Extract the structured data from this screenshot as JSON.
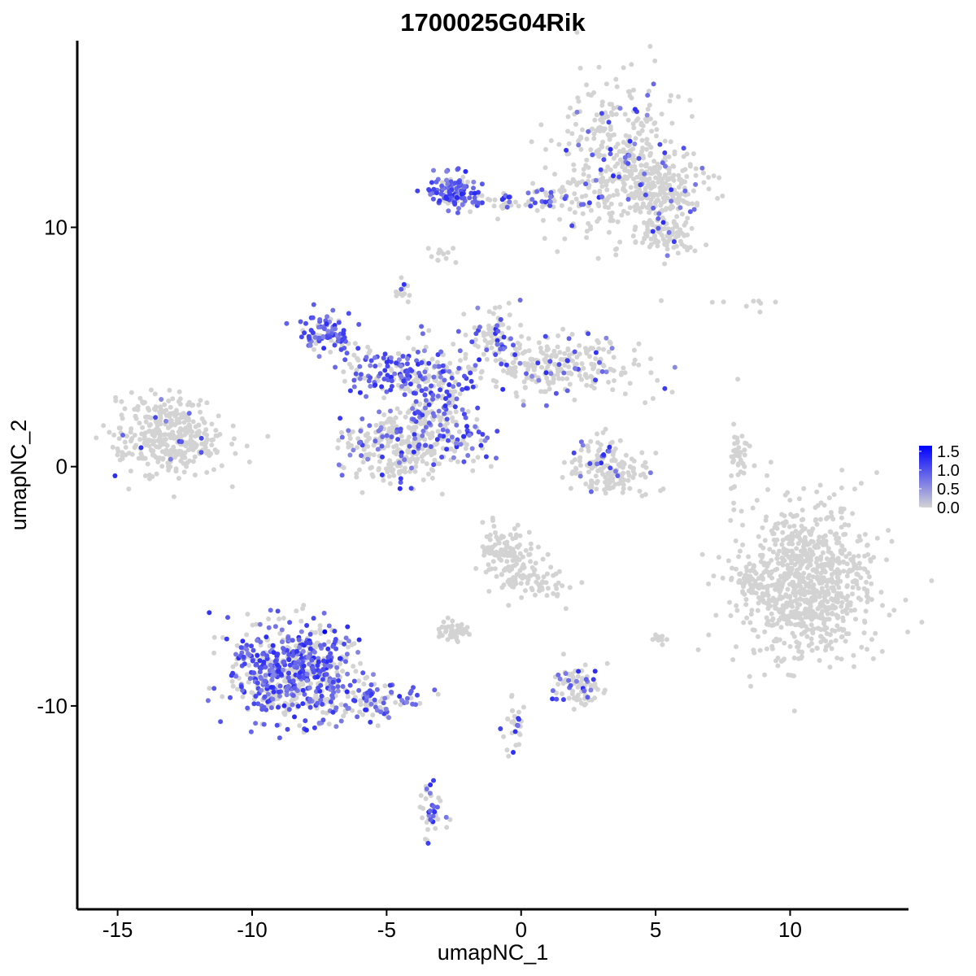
{
  "chart_data": {
    "type": "scatter",
    "title": "1700025G04Rik",
    "xlabel": "umapNC_1",
    "ylabel": "umapNC_2",
    "xlim": [
      -16.5,
      14.4
    ],
    "ylim": [
      -18.5,
      17.8
    ],
    "x_ticks": [
      -15,
      -10,
      -5,
      0,
      5,
      10
    ],
    "x_tick_labels": [
      "-15",
      "-10",
      "-5",
      "0",
      "5",
      "10"
    ],
    "y_ticks": [
      -10,
      0,
      10
    ],
    "y_tick_labels": [
      "-10",
      "0",
      "10"
    ],
    "grid": false,
    "legend": {
      "placement": "right",
      "type": "colorbar",
      "min": 0.0,
      "max": 1.65,
      "ticks": [
        0.0,
        0.5,
        1.0,
        1.5
      ],
      "tick_labels": [
        "0.0",
        "0.5",
        "1.0",
        "1.5"
      ],
      "color_low": "#d3d3d3",
      "color_high": "#0000ff"
    },
    "point_color_base": "#d3d3d3",
    "point_color_expr": "#0000ff",
    "clusters": [
      {
        "id": "top-right",
        "cx": 3.6,
        "cy": 12.8,
        "sx": 1.2,
        "sy": 1.6,
        "n": 380,
        "frac": 0.1
      },
      {
        "id": "top-right-tail",
        "cx": 5.2,
        "cy": 11.5,
        "sx": 0.8,
        "sy": 0.7,
        "n": 200,
        "frac": 0.08
      },
      {
        "id": "top-right-low",
        "cx": 5.5,
        "cy": 9.8,
        "sx": 0.5,
        "sy": 0.4,
        "n": 80,
        "frac": 0.05
      },
      {
        "id": "top-arm",
        "cx": -2.5,
        "cy": 11.5,
        "sx": 0.5,
        "sy": 0.35,
        "n": 120,
        "frac": 0.75
      },
      {
        "id": "top-bridge",
        "cx": 0.5,
        "cy": 11.1,
        "sx": 1.3,
        "sy": 0.25,
        "n": 90,
        "frac": 0.35
      },
      {
        "id": "left-blob",
        "cx": -13.0,
        "cy": 1.2,
        "sx": 1.0,
        "sy": 0.8,
        "n": 360,
        "frac": 0.02
      },
      {
        "id": "center-upper-left",
        "cx": -7.2,
        "cy": 5.5,
        "sx": 0.5,
        "sy": 0.4,
        "n": 90,
        "frac": 0.75
      },
      {
        "id": "center-arm",
        "cx": -4.6,
        "cy": 4.0,
        "sx": 1.0,
        "sy": 0.45,
        "n": 140,
        "frac": 0.6
      },
      {
        "id": "center-core",
        "cx": -3.2,
        "cy": 2.7,
        "sx": 0.7,
        "sy": 1.1,
        "n": 180,
        "frac": 0.45
      },
      {
        "id": "center-right-wing",
        "cx": 1.2,
        "cy": 4.2,
        "sx": 1.6,
        "sy": 0.6,
        "n": 260,
        "frac": 0.15
      },
      {
        "id": "center-upper-right",
        "cx": -1.0,
        "cy": 5.5,
        "sx": 0.5,
        "sy": 0.6,
        "n": 80,
        "frac": 0.2
      },
      {
        "id": "center-lower",
        "cx": -4.6,
        "cy": 0.9,
        "sx": 1.0,
        "sy": 0.8,
        "n": 280,
        "frac": 0.2
      },
      {
        "id": "center-diag",
        "cx": -1.9,
        "cy": 1.3,
        "sx": 0.5,
        "sy": 0.5,
        "n": 40,
        "frac": 0.6
      },
      {
        "id": "mid-arc",
        "cx": 3.2,
        "cy": -0.3,
        "sx": 0.9,
        "sy": 0.4,
        "n": 130,
        "frac": 0.05
      },
      {
        "id": "mid-arc-top",
        "cx": 2.9,
        "cy": 0.6,
        "sx": 0.4,
        "sy": 0.4,
        "n": 40,
        "frac": 0.15
      },
      {
        "id": "right-sliver",
        "cx": 8.1,
        "cy": 0.2,
        "sx": 0.2,
        "sy": 0.6,
        "n": 40,
        "frac": 0.0
      },
      {
        "id": "right-blob",
        "cx": 10.6,
        "cy": -4.9,
        "sx": 1.3,
        "sy": 1.6,
        "n": 850,
        "frac": 0.0
      },
      {
        "id": "right-blob-edge",
        "cx": 8.5,
        "cy": -4.8,
        "sx": 0.25,
        "sy": 0.5,
        "n": 40,
        "frac": 0.0
      },
      {
        "id": "bottom-center",
        "cx": -0.5,
        "cy": -3.8,
        "sx": 0.5,
        "sy": 0.7,
        "n": 140,
        "frac": 0.0
      },
      {
        "id": "bottom-center-tail",
        "cx": 0.9,
        "cy": -4.8,
        "sx": 0.5,
        "sy": 0.5,
        "n": 40,
        "frac": 0.0
      },
      {
        "id": "bottom-center-small",
        "cx": -2.5,
        "cy": -6.9,
        "sx": 0.3,
        "sy": 0.2,
        "n": 50,
        "frac": 0.0
      },
      {
        "id": "bottom-left-blob",
        "cx": -8.6,
        "cy": -8.6,
        "sx": 1.1,
        "sy": 1.0,
        "n": 640,
        "frac": 0.55
      },
      {
        "id": "bottom-left-tail",
        "cx": -5.5,
        "cy": -9.8,
        "sx": 0.9,
        "sy": 0.35,
        "n": 110,
        "frac": 0.45
      },
      {
        "id": "bottom-mid-right",
        "cx": 2.2,
        "cy": -9.2,
        "sx": 0.5,
        "sy": 0.45,
        "n": 80,
        "frac": 0.2
      },
      {
        "id": "bottom-strand",
        "cx": -0.3,
        "cy": -10.9,
        "sx": 0.2,
        "sy": 0.7,
        "n": 30,
        "frac": 0.1
      },
      {
        "id": "bottom-low",
        "cx": -3.3,
        "cy": -14.5,
        "sx": 0.25,
        "sy": 0.6,
        "n": 40,
        "frac": 0.35
      },
      {
        "id": "top-isolated",
        "cx": -2.8,
        "cy": 8.8,
        "sx": 0.25,
        "sy": 0.2,
        "n": 12,
        "frac": 0.0
      },
      {
        "id": "upper-small",
        "cx": -4.5,
        "cy": 7.3,
        "sx": 0.2,
        "sy": 0.3,
        "n": 12,
        "frac": 0.2
      },
      {
        "id": "far-right-dots",
        "cx": 8.8,
        "cy": 6.8,
        "sx": 0.9,
        "sy": 0.2,
        "n": 8,
        "frac": 0.0
      },
      {
        "id": "right-small",
        "cx": 5.1,
        "cy": -7.2,
        "sx": 0.15,
        "sy": 0.2,
        "n": 10,
        "frac": 0.0
      }
    ]
  }
}
